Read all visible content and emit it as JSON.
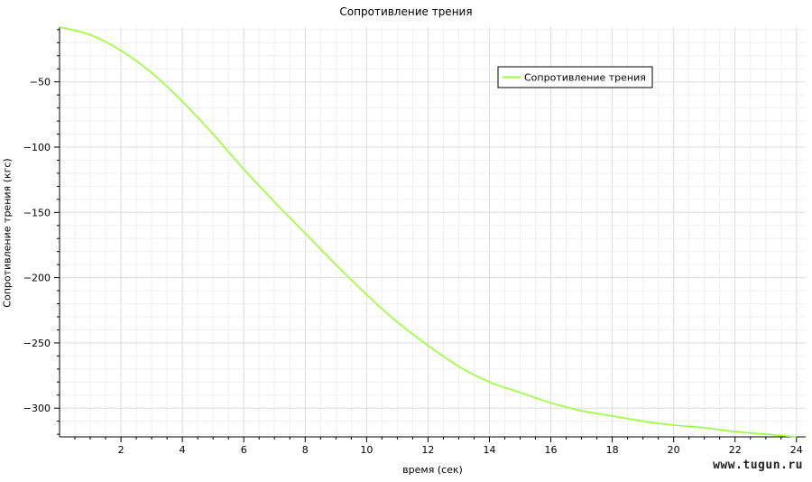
{
  "chart_data": {
    "type": "line",
    "title": "Сопротивление трения",
    "xlabel": "время (сек)",
    "ylabel": "Сопротивление трения (кгс)",
    "xlim": [
      0,
      24.3
    ],
    "ylim": [
      -322,
      -8
    ],
    "grid": true,
    "legend_position": "top-right",
    "x_ticks": [
      2,
      4,
      6,
      8,
      10,
      12,
      14,
      16,
      18,
      20,
      22,
      24
    ],
    "y_ticks": [
      -50,
      -100,
      -150,
      -200,
      -250,
      -300
    ],
    "tick_labels": {
      "x": [
        "2",
        "4",
        "6",
        "8",
        "10",
        "12",
        "14",
        "16",
        "18",
        "20",
        "22",
        "24"
      ],
      "y": [
        "−50",
        "−100",
        "−150",
        "−200",
        "−250",
        "−300"
      ]
    },
    "series": [
      {
        "name": "Сопротивление трения",
        "color": "#99ff33",
        "x": [
          0,
          1,
          2,
          3,
          4,
          5,
          6,
          7,
          8,
          9,
          10,
          11,
          12,
          13,
          14,
          15,
          16,
          17,
          18,
          19,
          20,
          21,
          22,
          23,
          24
        ],
        "y": [
          -8,
          -14,
          -26,
          -43,
          -65,
          -90,
          -117,
          -142,
          -166,
          -190,
          -213,
          -234,
          -252,
          -268,
          -280,
          -288,
          -296,
          -302,
          -306,
          -310,
          -313,
          -315,
          -318,
          -320,
          -322
        ]
      }
    ]
  },
  "watermark": "www.tugun.ru"
}
